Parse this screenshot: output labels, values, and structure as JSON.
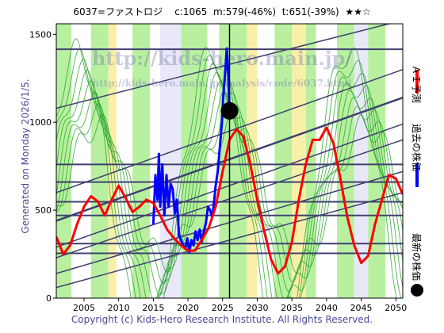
{
  "header": {
    "ticker": "6037=ファストロジ",
    "current": "c:1065",
    "m": "m:579(-46%)",
    "t": "t:651(-39%)",
    "stars": "★★☆"
  },
  "generated": "Generated on Monday 2026/1/5.",
  "footer": "Copyright (c) Kids-Hero Research Institute. All Rights Reserved.",
  "watermark": {
    "main": "http://kids-hero.main.jp/",
    "sub": "http://kids-hero.main.jp/analysis/code/6037.html"
  },
  "legend": {
    "ai": "ＡＩ予測",
    "past": "過去の株価",
    "latest": "最新の株価",
    "colors": {
      "ai": "#ff0000",
      "past": "#0000ff",
      "latest": "#000000"
    }
  },
  "chart_data": {
    "type": "line",
    "xlim": [
      2001,
      2051
    ],
    "ylim": [
      0,
      1560
    ],
    "xticks": [
      "2005",
      "2010",
      "2015",
      "2020",
      "2025",
      "2030",
      "2035",
      "2040",
      "2045",
      "2050"
    ],
    "yticks": [
      "0",
      "500",
      "1000",
      "1500"
    ],
    "latest": {
      "x": 2026.0,
      "y": 1065
    },
    "hlines": [
      1415,
      760,
      660,
      548,
      470,
      310,
      255
    ],
    "series": [
      {
        "name": "過去の株価",
        "color": "#0000ff",
        "x": [
          2015.0,
          2015.3,
          2015.6,
          2015.8,
          2016.0,
          2016.3,
          2016.6,
          2016.9,
          2017.2,
          2017.5,
          2017.8,
          2018.1,
          2018.4,
          2018.7,
          2019.0,
          2019.3,
          2019.6,
          2019.9,
          2020.2,
          2020.5,
          2020.8,
          2021.1,
          2021.4,
          2021.7,
          2022.0,
          2022.3,
          2022.6,
          2022.9,
          2023.2,
          2023.5,
          2023.8,
          2024.0,
          2024.3,
          2024.6,
          2024.9,
          2025.1,
          2025.4,
          2025.6,
          2025.8,
          2026.0
        ],
        "y": [
          420,
          700,
          560,
          820,
          520,
          760,
          470,
          700,
          520,
          650,
          620,
          480,
          560,
          360,
          330,
          300,
          280,
          340,
          260,
          330,
          300,
          380,
          330,
          390,
          320,
          380,
          430,
          520,
          500,
          460,
          560,
          640,
          720,
          860,
          1000,
          1150,
          1300,
          1420,
          1280,
          1065
        ]
      },
      {
        "name": "ＡＩ予測",
        "color": "#ff0000",
        "x": [
          2001,
          2002,
          2003,
          2004,
          2005,
          2006,
          2007,
          2008,
          2009,
          2010,
          2011,
          2012,
          2013,
          2014,
          2015,
          2016,
          2017,
          2018,
          2019,
          2020,
          2021,
          2022,
          2023,
          2024,
          2025,
          2026,
          2027,
          2028,
          2029,
          2030,
          2031,
          2032,
          2033,
          2034,
          2035,
          2036,
          2037,
          2038,
          2039,
          2040,
          2041,
          2042,
          2043,
          2044,
          2045,
          2046,
          2047,
          2048,
          2049,
          2050,
          2051
        ],
        "y": [
          350,
          250,
          300,
          420,
          520,
          580,
          550,
          470,
          560,
          640,
          570,
          490,
          520,
          560,
          540,
          470,
          390,
          340,
          300,
          270,
          270,
          330,
          400,
          520,
          720,
          900,
          960,
          920,
          760,
          560,
          380,
          220,
          140,
          180,
          320,
          560,
          760,
          900,
          900,
          970,
          880,
          680,
          460,
          300,
          200,
          240,
          420,
          560,
          700,
          680,
          590
        ]
      }
    ]
  }
}
